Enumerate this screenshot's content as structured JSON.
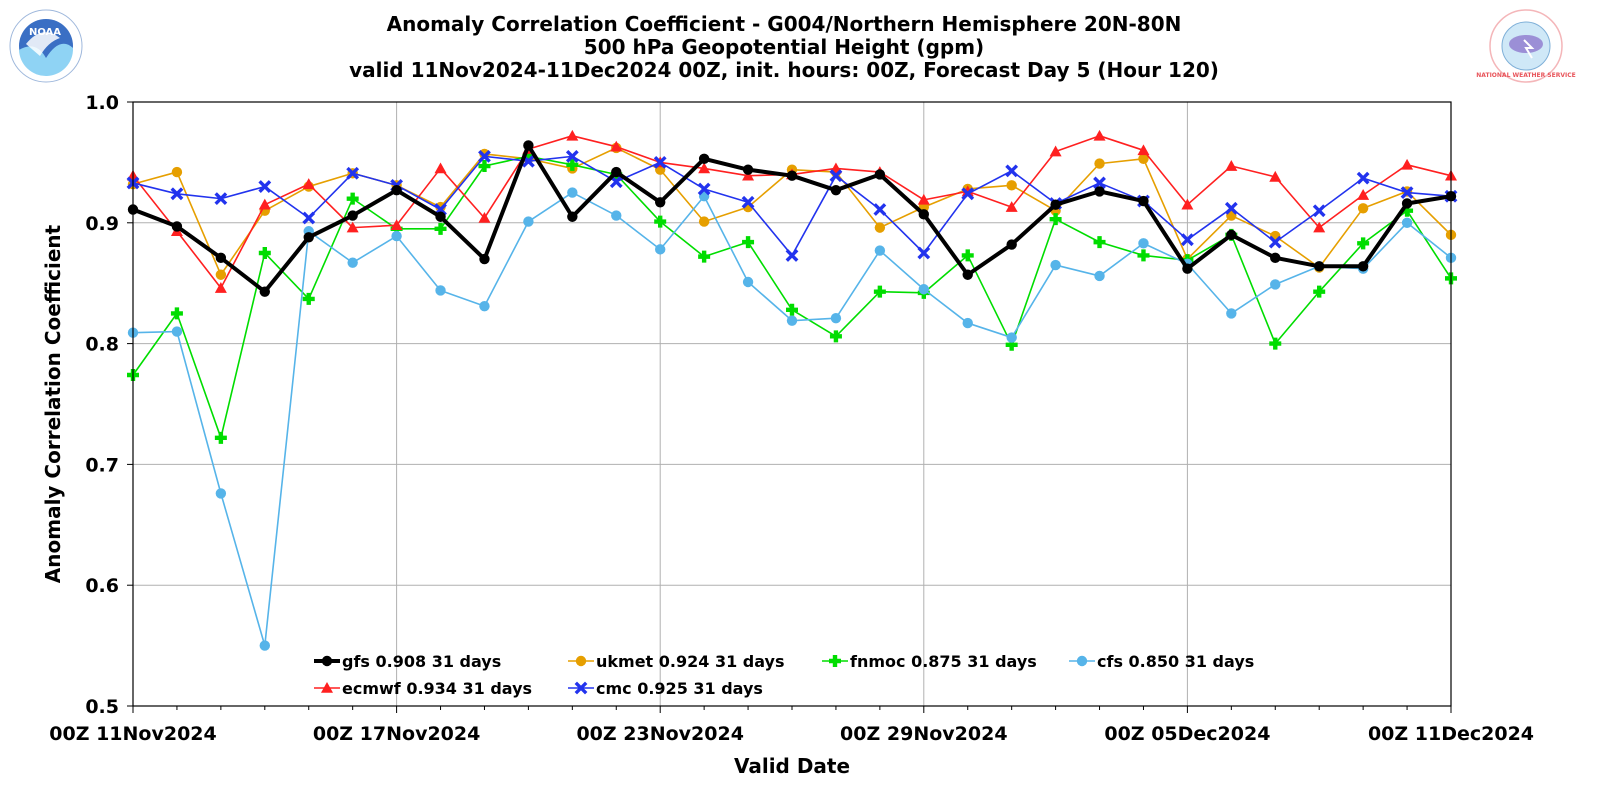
{
  "colors": {
    "gfs": "#000000",
    "ukmet": "#e69f00",
    "fnmoc": "#00dd00",
    "cfs": "#56b4e9",
    "ecmwf": "#ff2020",
    "cmc": "#2233ee",
    "grid": "#b0b0b0",
    "noaa_logo": "#3a6fc4",
    "nws_logo": "#e8545a"
  },
  "logos": {
    "left": {
      "icon": "noaa-logo-icon",
      "text": "NOAA"
    },
    "right": {
      "icon": "nws-logo-icon",
      "text": "NATIONAL WEATHER SERVICE"
    }
  },
  "chart_data": {
    "type": "line",
    "title": "Anomaly Correlation Coefficient - G004/Northern Hemisphere 20N-80N",
    "subtitle": "500 hPa Geopotential Height (gpm)",
    "subtitle2": "valid 11Nov2024-11Dec2024 00Z, init. hours: 00Z, Forecast Day 5 (Hour 120)",
    "xlabel": "Valid Date",
    "ylabel": "Anomaly Correlation Coefficient",
    "ylim": [
      0.5,
      1.0
    ],
    "yticks": [
      "0.5",
      "0.6",
      "0.7",
      "0.8",
      "0.9",
      "1.0"
    ],
    "xlim": [
      "2024-11-11",
      "2024-12-11"
    ],
    "xticks": [
      "00Z 11Nov2024",
      "00Z 17Nov2024",
      "00Z 23Nov2024",
      "00Z 29Nov2024",
      "00Z 05Dec2024",
      "00Z 11Dec2024"
    ],
    "x": [
      "2024-11-11",
      "2024-11-12",
      "2024-11-13",
      "2024-11-14",
      "2024-11-15",
      "2024-11-16",
      "2024-11-17",
      "2024-11-18",
      "2024-11-19",
      "2024-11-20",
      "2024-11-21",
      "2024-11-22",
      "2024-11-23",
      "2024-11-24",
      "2024-11-25",
      "2024-11-26",
      "2024-11-27",
      "2024-11-28",
      "2024-11-29",
      "2024-11-30",
      "2024-12-01",
      "2024-12-02",
      "2024-12-03",
      "2024-12-04",
      "2024-12-05",
      "2024-12-06",
      "2024-12-07",
      "2024-12-08",
      "2024-12-09",
      "2024-12-10",
      "2024-12-11"
    ],
    "grid": true,
    "legend_position": "bottom-center",
    "series": [
      {
        "name": "gfs",
        "legend": "gfs 0.908 31 days",
        "marker": "circle",
        "values": [
          0.911,
          0.897,
          0.871,
          0.843,
          0.888,
          0.906,
          0.927,
          0.905,
          0.87,
          0.964,
          0.905,
          0.942,
          0.917,
          0.953,
          0.944,
          0.939,
          0.927,
          0.94,
          0.907,
          0.857,
          0.882,
          0.915,
          0.926,
          0.918,
          0.862,
          0.89,
          0.871,
          0.864,
          0.864,
          0.916,
          0.922
        ]
      },
      {
        "name": "ukmet",
        "legend": "ukmet 0.924 31 days",
        "marker": "circle",
        "values": [
          0.932,
          0.942,
          0.857,
          0.91,
          0.93,
          0.941,
          0.931,
          0.913,
          0.957,
          0.953,
          0.945,
          0.962,
          0.944,
          0.901,
          0.913,
          0.944,
          0.942,
          0.896,
          0.913,
          0.928,
          0.931,
          0.91,
          0.949,
          0.953,
          0.87,
          0.906,
          0.889,
          0.863,
          0.912,
          0.926,
          0.89
        ]
      },
      {
        "name": "fnmoc",
        "legend": "fnmoc 0.875 31 days",
        "marker": "plus",
        "values": [
          0.774,
          0.825,
          0.722,
          0.875,
          0.837,
          0.92,
          0.895,
          0.895,
          0.947,
          0.955,
          0.948,
          0.94,
          0.901,
          0.872,
          0.884,
          0.828,
          0.806,
          0.843,
          0.842,
          0.873,
          0.799,
          0.903,
          0.884,
          0.873,
          0.869,
          0.89,
          0.8,
          0.843,
          0.883,
          0.91,
          0.854
        ]
      },
      {
        "name": "cfs",
        "legend": "cfs 0.850 31 days",
        "marker": "circle",
        "values": [
          0.809,
          0.81,
          0.676,
          0.55,
          0.893,
          0.867,
          0.889,
          0.844,
          0.831,
          0.901,
          0.925,
          0.906,
          0.878,
          0.922,
          0.851,
          0.819,
          0.821,
          0.877,
          0.845,
          0.817,
          0.805,
          0.865,
          0.856,
          0.883,
          0.866,
          0.825,
          0.849,
          0.864,
          0.862,
          0.9,
          0.871
        ]
      },
      {
        "name": "ecmwf",
        "legend": "ecmwf 0.934 31 days",
        "marker": "triangle",
        "values": [
          0.939,
          0.893,
          0.846,
          0.915,
          0.932,
          0.896,
          0.898,
          0.945,
          0.904,
          0.961,
          0.972,
          0.963,
          0.95,
          0.945,
          0.939,
          0.94,
          0.945,
          0.942,
          0.919,
          0.926,
          0.913,
          0.959,
          0.972,
          0.96,
          0.915,
          0.947,
          0.938,
          0.896,
          0.923,
          0.948,
          0.939
        ]
      },
      {
        "name": "cmc",
        "legend": "cmc 0.925 31 days",
        "marker": "x",
        "values": [
          0.933,
          0.924,
          0.92,
          0.93,
          0.904,
          0.941,
          0.931,
          0.911,
          0.955,
          0.951,
          0.955,
          0.934,
          0.95,
          0.928,
          0.917,
          0.873,
          0.939,
          0.911,
          0.875,
          0.924,
          0.943,
          0.916,
          0.933,
          0.918,
          0.886,
          0.912,
          0.884,
          0.91,
          0.937,
          0.925,
          0.922
        ]
      }
    ]
  }
}
